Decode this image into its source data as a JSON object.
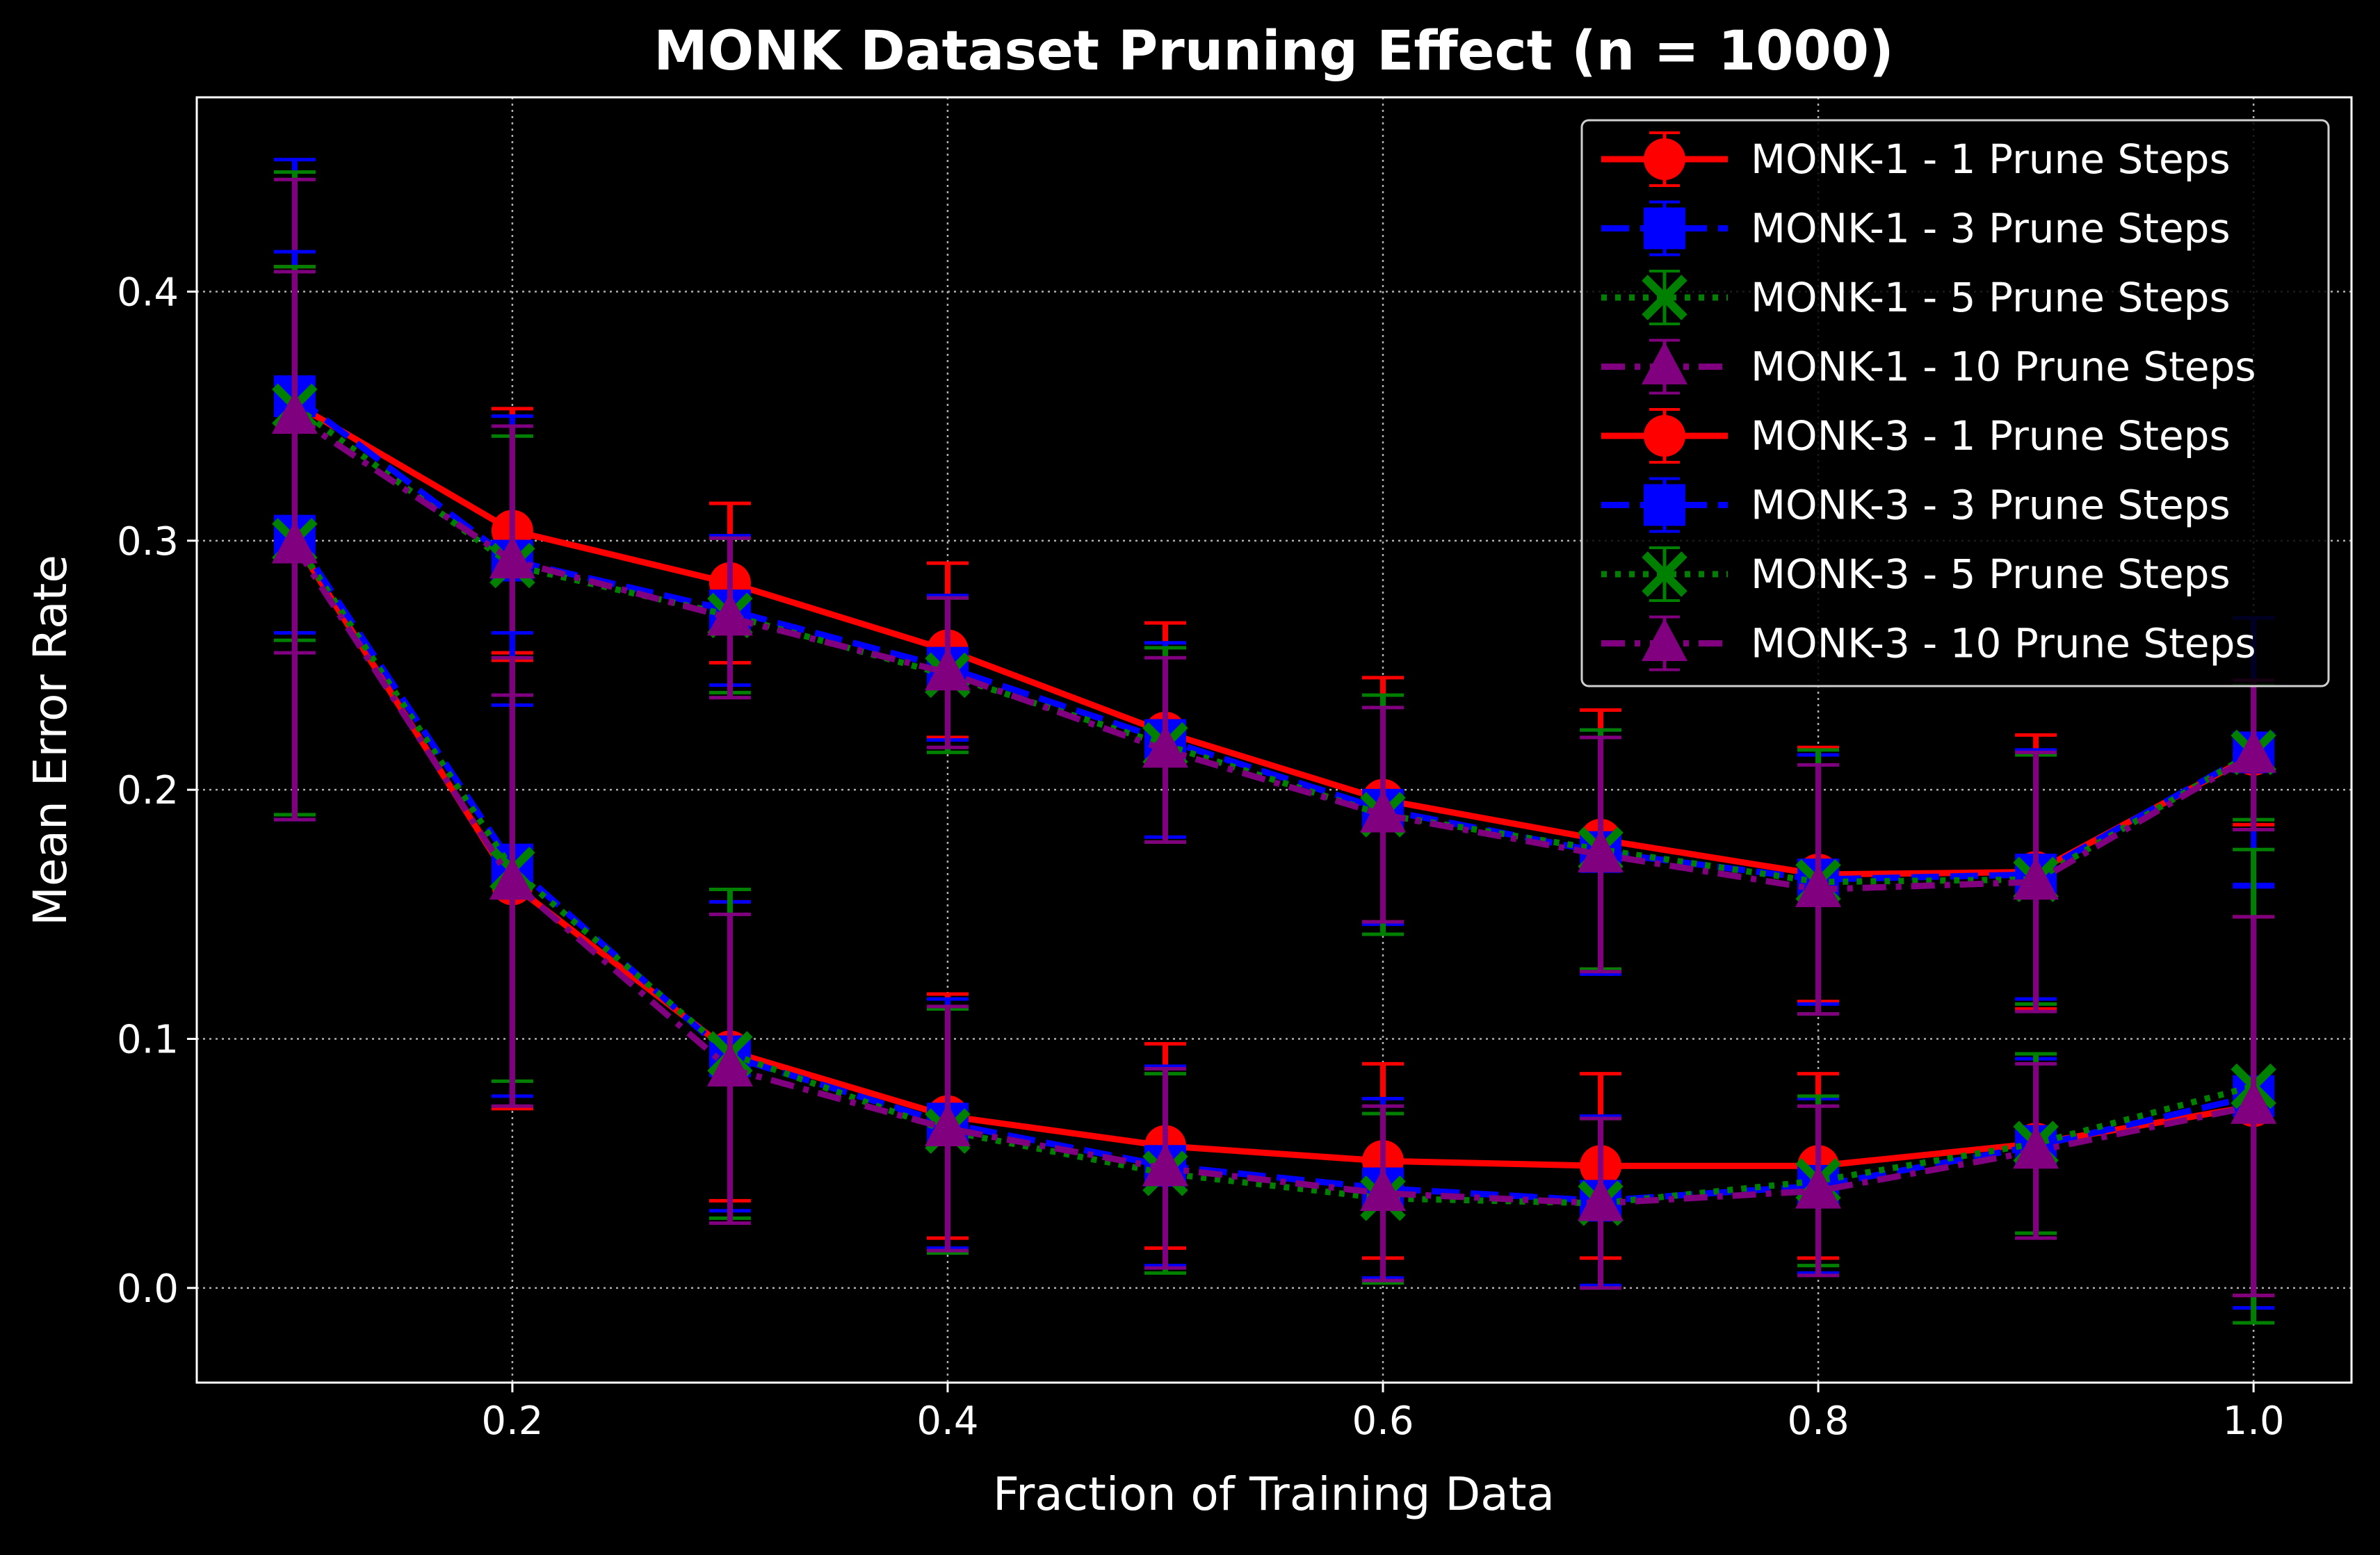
{
  "chart_data": {
    "type": "line",
    "title": "MONK Dataset Pruning Effect (n = 1000)",
    "xlabel": "Fraction of Training Data",
    "ylabel": "Mean Error Rate",
    "xlim": [
      0.055,
      1.045
    ],
    "ylim": [
      -0.038,
      0.478
    ],
    "xticks": [
      0.2,
      0.4,
      0.6,
      0.8,
      1.0
    ],
    "xtick_labels": [
      "0.2",
      "0.4",
      "0.6",
      "0.8",
      "1.0"
    ],
    "yticks": [
      0.0,
      0.1,
      0.2,
      0.3,
      0.4
    ],
    "ytick_labels": [
      "0.0",
      "0.1",
      "0.2",
      "0.3",
      "0.4"
    ],
    "grid": true,
    "legend_position": "top-right",
    "x": [
      0.1,
      0.2,
      0.3,
      0.4,
      0.5,
      0.6,
      0.7,
      0.8,
      0.9,
      1.0
    ],
    "series": [
      {
        "name": "MONK-1 - 1 Prune Steps",
        "color": "#ff0000",
        "marker": "circle",
        "line_style": "solid",
        "values": [
          0.355,
          0.304,
          0.283,
          0.256,
          0.223,
          0.196,
          0.18,
          0.166,
          0.167,
          0.214
        ],
        "errors": [
          0.055,
          0.049,
          0.032,
          0.035,
          0.044,
          0.049,
          0.052,
          0.051,
          0.055,
          0.028
        ]
      },
      {
        "name": "MONK-1 - 3 Prune Steps",
        "color": "#0000ff",
        "marker": "square",
        "line_style": "dashed",
        "values": [
          0.358,
          0.292,
          0.272,
          0.249,
          0.22,
          0.192,
          0.175,
          0.164,
          0.166,
          0.215
        ],
        "errors": [
          0.095,
          0.058,
          0.03,
          0.029,
          0.039,
          0.046,
          0.049,
          0.05,
          0.05,
          0.054
        ]
      },
      {
        "name": "MONK-1 - 5 Prune Steps",
        "color": "#008000",
        "marker": "x-errorbar",
        "line_style": "dotted",
        "values": [
          0.354,
          0.29,
          0.27,
          0.246,
          0.218,
          0.19,
          0.176,
          0.163,
          0.164,
          0.215
        ],
        "errors": [
          0.094,
          0.052,
          0.031,
          0.031,
          0.039,
          0.048,
          0.048,
          0.053,
          0.05,
          0.027
        ]
      },
      {
        "name": "MONK-1 - 10 Prune Steps",
        "color": "#800080",
        "marker": "triangle",
        "line_style": "dashdot",
        "values": [
          0.35,
          0.292,
          0.269,
          0.247,
          0.216,
          0.19,
          0.174,
          0.16,
          0.163,
          0.214
        ],
        "errors": [
          0.095,
          0.054,
          0.032,
          0.03,
          0.037,
          0.043,
          0.047,
          0.05,
          0.052,
          0.03
        ]
      },
      {
        "name": "MONK-3 - 1 Prune Steps",
        "color": "#ff0000",
        "marker": "circle",
        "line_style": "solid",
        "values": [
          0.3,
          0.162,
          0.095,
          0.069,
          0.057,
          0.051,
          0.049,
          0.049,
          0.058,
          0.073
        ],
        "errors": [
          0.11,
          0.09,
          0.06,
          0.049,
          0.041,
          0.039,
          0.037,
          0.037,
          0.036,
          0.076
        ]
      },
      {
        "name": "MONK-3 - 3 Prune Steps",
        "color": "#0000ff",
        "marker": "square",
        "line_style": "dashed",
        "values": [
          0.302,
          0.17,
          0.093,
          0.066,
          0.049,
          0.04,
          0.035,
          0.041,
          0.057,
          0.077
        ],
        "errors": [
          0.114,
          0.093,
          0.062,
          0.05,
          0.04,
          0.036,
          0.034,
          0.035,
          0.035,
          0.085
        ]
      },
      {
        "name": "MONK-3 - 5 Prune Steps",
        "color": "#008000",
        "marker": "x-errorbar",
        "line_style": "dotted",
        "values": [
          0.3,
          0.168,
          0.094,
          0.063,
          0.046,
          0.036,
          0.034,
          0.043,
          0.058,
          0.081
        ],
        "errors": [
          0.11,
          0.085,
          0.066,
          0.049,
          0.04,
          0.034,
          0.034,
          0.034,
          0.036,
          0.095
        ]
      },
      {
        "name": "MONK-3 - 10 Prune Steps",
        "color": "#800080",
        "marker": "triangle",
        "line_style": "dashdot",
        "values": [
          0.298,
          0.163,
          0.088,
          0.064,
          0.048,
          0.038,
          0.034,
          0.039,
          0.055,
          0.073
        ],
        "errors": [
          0.11,
          0.09,
          0.062,
          0.049,
          0.04,
          0.035,
          0.034,
          0.034,
          0.035,
          0.076
        ]
      }
    ]
  }
}
